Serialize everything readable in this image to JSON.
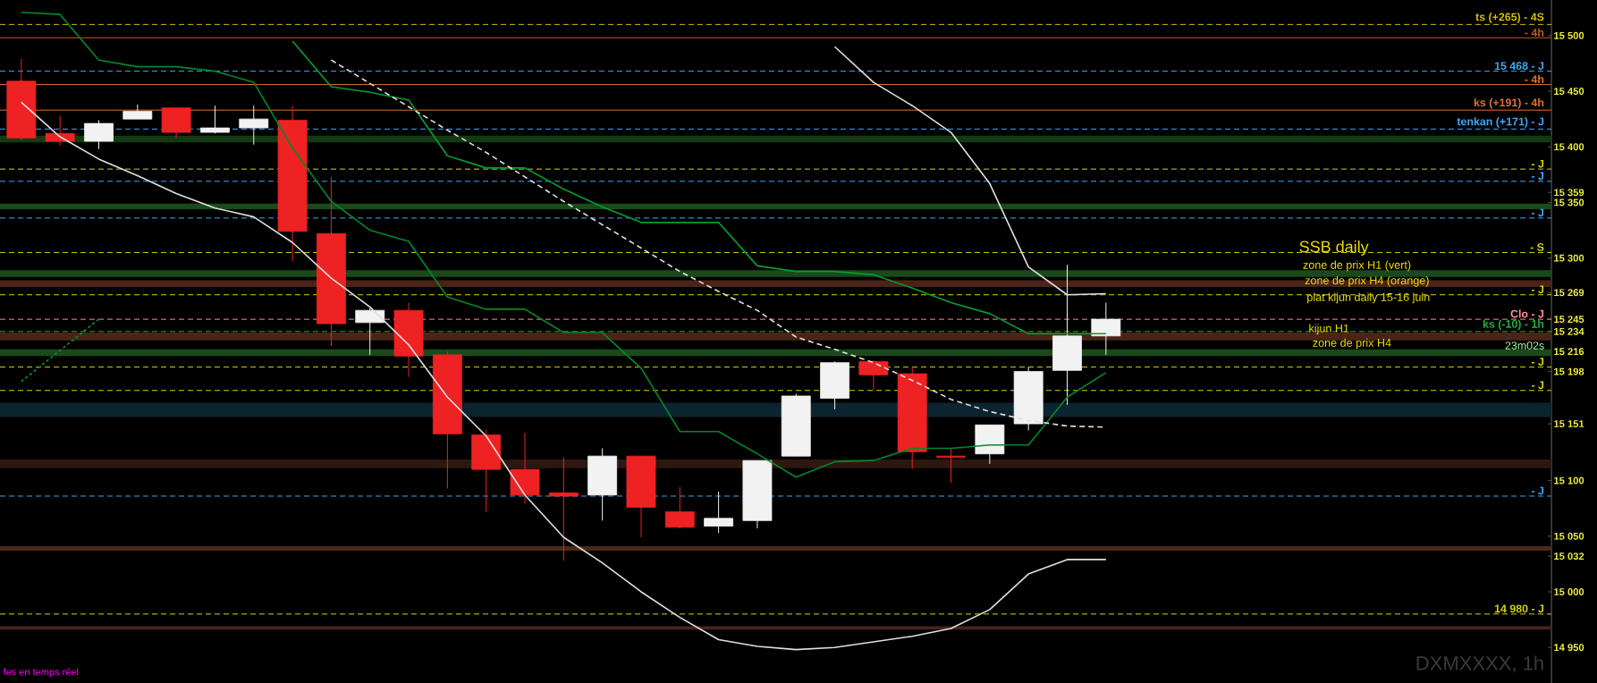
{
  "chart_data": {
    "type": "candlestick",
    "categories": [
      null,
      null,
      null,
      null,
      null,
      null,
      null,
      null,
      null,
      null,
      null,
      null,
      null,
      null,
      null,
      null,
      null,
      null,
      null,
      null,
      null,
      null,
      null,
      null,
      null,
      null,
      null,
      null,
      null
    ],
    "ohlc": [
      [
        15459,
        15479,
        15406,
        15408
      ],
      [
        15412,
        15428,
        15401,
        15405
      ],
      [
        15405,
        15424,
        15398,
        15421
      ],
      [
        15425,
        15438,
        15425,
        15432
      ],
      [
        15435,
        15435,
        15408,
        15413
      ],
      [
        15413,
        15437,
        15412,
        15417
      ],
      [
        15417,
        15437,
        15402,
        15425
      ],
      [
        15424,
        15437,
        15297,
        15324
      ],
      [
        15322,
        15373,
        15221,
        15241
      ],
      [
        15242,
        15255,
        15213,
        15253
      ],
      [
        15253,
        15260,
        15193,
        15212
      ],
      [
        15213,
        15216,
        15093,
        15142
      ],
      [
        15141,
        15146,
        15072,
        15110
      ],
      [
        15110,
        15143,
        15079,
        15087
      ],
      [
        15089,
        15121,
        15028,
        15086
      ],
      [
        15087,
        15129,
        15064,
        15122
      ],
      [
        15122,
        15122,
        15049,
        15076
      ],
      [
        15072,
        15094,
        15057,
        15058
      ],
      [
        15059,
        15090,
        15053,
        15066
      ],
      [
        15064,
        15118,
        15057,
        15118
      ],
      [
        15122,
        15178,
        15122,
        15176
      ],
      [
        15174,
        15207,
        15164,
        15206
      ],
      [
        15207,
        15208,
        15181,
        15195
      ],
      [
        15196,
        15202,
        15111,
        15126
      ],
      [
        15122,
        15129,
        15098,
        15121
      ],
      [
        15124,
        15150,
        15115,
        15150
      ],
      [
        15151,
        15202,
        15145,
        15198
      ],
      [
        15199,
        15294,
        15168,
        15230
      ],
      [
        15230,
        15260,
        15213,
        15245
      ]
    ],
    "series": [
      {
        "type": "line",
        "color": "#00a030",
        "line_style": "solid",
        "values": [
          null,
          null,
          null,
          null,
          null,
          null,
          null,
          15495,
          15454,
          15449,
          15442,
          15392,
          15381,
          15381,
          15362,
          15346,
          15332,
          15332,
          15332,
          15293,
          15288,
          15288,
          15285,
          15273,
          15260,
          15250,
          15232,
          15232,
          15232
        ]
      },
      {
        "type": "line",
        "color": "#008a2a",
        "line_style": "solid",
        "values": [
          15521,
          15519,
          15478,
          15472,
          15472,
          15468,
          15458,
          15399,
          15351,
          15325,
          15315,
          15265,
          15254,
          15254,
          15233,
          15233,
          15201,
          15144,
          15144,
          15124,
          15103,
          15117,
          15118,
          15129,
          15129,
          15132,
          15132,
          15175,
          15197
        ]
      },
      {
        "type": "line",
        "color": "#e0e0e0",
        "line_style": "solid",
        "values": [
          15440,
          15409,
          15389,
          15374,
          15358,
          15345,
          15337,
          15314,
          15282,
          15256,
          15222,
          15175,
          15140,
          15087,
          15049,
          15026,
          15000,
          14977,
          14957,
          14951,
          14948,
          14950,
          14955,
          14960,
          14967,
          14984,
          15016,
          15029,
          15029
        ]
      },
      {
        "type": "line",
        "color": "#e0e0e0",
        "line_style": "solid",
        "values": [
          null,
          null,
          null,
          null,
          null,
          null,
          null,
          null,
          null,
          null,
          null,
          null,
          null,
          null,
          null,
          null,
          null,
          null,
          null,
          null,
          null,
          15490,
          15458,
          15437,
          15413,
          15367,
          15292,
          15267,
          15268
        ]
      },
      {
        "type": "line",
        "color": "#e0e0e0",
        "line_style": "dashed",
        "values": [
          null,
          null,
          null,
          null,
          null,
          null,
          null,
          null,
          15478,
          15457,
          15436,
          15415,
          15395,
          15373,
          15351,
          15330,
          15309,
          15288,
          15270,
          15253,
          15229,
          15218,
          15206,
          15190,
          15173,
          15162,
          15154,
          15149,
          15148
        ]
      },
      {
        "type": "line",
        "color": "#00a030",
        "line_style": "dotted",
        "values": [
          15189,
          15217,
          15245,
          null,
          null,
          null,
          null,
          null,
          null,
          null,
          null,
          null,
          null,
          null,
          null,
          null,
          null,
          null,
          null,
          null,
          null,
          null,
          null,
          null,
          null,
          null,
          null,
          null,
          null
        ]
      }
    ],
    "ylim": [
      14918,
      15532
    ],
    "yticks": [
      {
        "value": 14950,
        "label": "14 950"
      },
      {
        "value": 15000,
        "label": "15 000"
      },
      {
        "value": 15032,
        "label": "15 032"
      },
      {
        "value": 15050,
        "label": "15 050"
      },
      {
        "value": 15100,
        "label": "15 100"
      },
      {
        "value": 15151,
        "label": "15 151"
      },
      {
        "value": 15198,
        "label": "15 198"
      },
      {
        "value": 15216,
        "label": "15 216"
      },
      {
        "value": 15234,
        "label": "15 234"
      },
      {
        "value": 15245,
        "label": "15 245"
      },
      {
        "value": 15269,
        "label": "15 269"
      },
      {
        "value": 15300,
        "label": "15 300"
      },
      {
        "value": 15350,
        "label": "15 350"
      },
      {
        "value": 15359,
        "label": "15 359"
      },
      {
        "value": 15400,
        "label": "15 400"
      },
      {
        "value": 15450,
        "label": "15 450"
      },
      {
        "value": 15500,
        "label": "15 500"
      }
    ],
    "ref_lines": [
      {
        "axis": "y",
        "value": 15510,
        "label": "ts (+265) - 4S",
        "color": "#d4c000",
        "line_style": "dashed"
      },
      {
        "axis": "y",
        "value": 15498,
        "label": "- 4h",
        "color": "#c05a28",
        "line_style": "solid"
      },
      {
        "axis": "y",
        "value": 15468,
        "label": "15 468 - J",
        "color": "#3fa9f5",
        "line_style": "dashed"
      },
      {
        "axis": "y",
        "value": 15456,
        "label": "- 4h",
        "color": "#e0703a",
        "line_style": "solid"
      },
      {
        "axis": "y",
        "value": 15433,
        "label": "ks (+191) - 4h",
        "color": "#e0703a",
        "line_style": "solid"
      },
      {
        "axis": "y",
        "value": 15416,
        "label": "tenkan (+171) - J",
        "color": "#3fa9f5",
        "line_style": "dashed"
      },
      {
        "axis": "y",
        "value": 15380,
        "label": "- J",
        "color": "#d4d400",
        "line_style": "dashed"
      },
      {
        "axis": "y",
        "value": 15369,
        "label": "- J",
        "color": "#3fa9f5",
        "line_style": "dashed"
      },
      {
        "axis": "y",
        "value": 15336,
        "label": "- J",
        "color": "#3fa9f5",
        "line_style": "dashed"
      },
      {
        "axis": "y",
        "value": 15305,
        "label": "- S",
        "color": "#d4d400",
        "line_style": "dashed"
      },
      {
        "axis": "y",
        "value": 15267,
        "label": "- J",
        "color": "#d4d400",
        "line_style": "dashed"
      },
      {
        "axis": "y",
        "value": 15245,
        "label": "Clo - J",
        "color": "#ff9090",
        "line_style": "dashed"
      },
      {
        "axis": "y",
        "value": 15234,
        "label": "ks (-10) - 1h",
        "color": "#20b040",
        "line_style": "dashed"
      },
      {
        "axis": "y",
        "value": 15202,
        "label": "- J",
        "color": "#d4d400",
        "line_style": "dashed"
      },
      {
        "axis": "y",
        "value": 15181,
        "label": "- J",
        "color": "#d4d400",
        "line_style": "dashed"
      },
      {
        "axis": "y",
        "value": 15086,
        "label": "- J",
        "color": "#3fa9f5",
        "line_style": "dashed"
      },
      {
        "axis": "y",
        "value": 14980,
        "label": "14 980 - J",
        "color": "#d4d400",
        "line_style": "dashed"
      }
    ],
    "bands": [
      {
        "axis": "y",
        "from": 15404,
        "to": 15410,
        "color": "#143a14"
      },
      {
        "axis": "y",
        "from": 15344,
        "to": 15349,
        "color": "#1a4a1a"
      },
      {
        "axis": "y",
        "from": 15283,
        "to": 15289,
        "color": "#1a4a1a"
      },
      {
        "axis": "y",
        "from": 15274,
        "to": 15280,
        "color": "#4a2418"
      },
      {
        "axis": "y",
        "from": 15226,
        "to": 15233,
        "color": "#4a2418"
      },
      {
        "axis": "y",
        "from": 15212,
        "to": 15218,
        "color": "#1a4a1a"
      },
      {
        "axis": "y",
        "from": 15157,
        "to": 15170,
        "color": "#0c2330"
      },
      {
        "axis": "y",
        "from": 15111,
        "to": 15119,
        "color": "#2c1810"
      },
      {
        "axis": "y",
        "from": 15037,
        "to": 15041,
        "color": "#4a2a18"
      },
      {
        "axis": "y",
        "from": 14966,
        "to": 14969,
        "color": "#4a2418"
      }
    ],
    "annotations": [
      "SSB daily",
      "zone de prix H1 (vert)",
      "zone de prix H4 (orange)",
      "plat kijun daily 15-16 juin",
      "kijun H1",
      "zone de prix H4",
      "23m02s",
      "DXMXXXX, 1h",
      "fes en temps réel"
    ]
  }
}
